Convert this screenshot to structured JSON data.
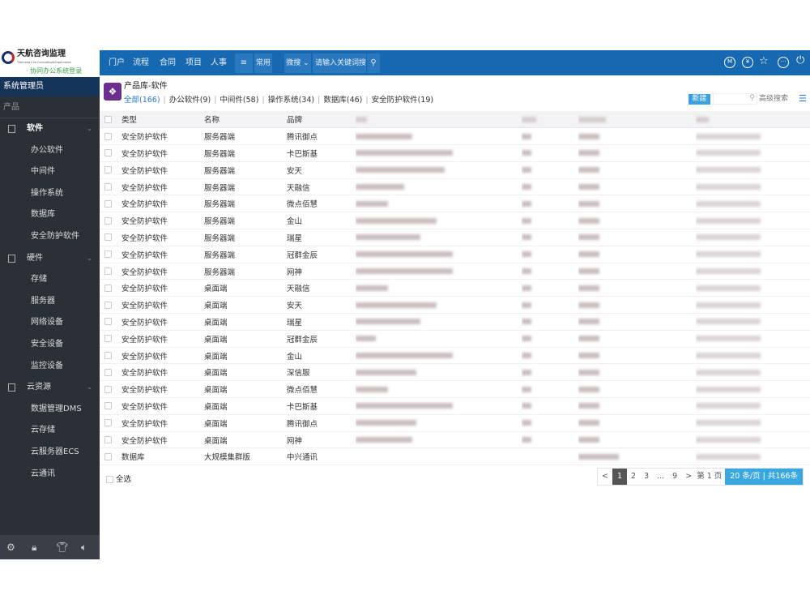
{
  "logo": {
    "name": "天航咨询监理",
    "subtitle": "Tianhang Info Consulting&Supervision",
    "slogan": "· 协同办公系统登录"
  },
  "topbar": {
    "nav": [
      "门户",
      "流程",
      "合同",
      "项目",
      "人事"
    ],
    "menu_icon": "≡",
    "common": "常用",
    "wsearch": "微搜 ⌄",
    "search_placeholder": "请输入关键词搜索",
    "right_icons": [
      "M",
      "¥",
      "star-icon",
      "message-icon",
      "power-icon"
    ]
  },
  "sidebar": {
    "user": "系统管理员",
    "section": "产品",
    "groups": [
      {
        "label": "软件",
        "items": [
          "办公软件",
          "中间件",
          "操作系统",
          "数据库",
          "安全防护软件"
        ]
      },
      {
        "label": "硬件",
        "items": [
          "存储",
          "服务器",
          "网络设备",
          "安全设备",
          "监控设备"
        ]
      },
      {
        "label": "云资源",
        "items": [
          "数据管理DMS",
          "云存储",
          "云服务器ECS",
          "云通讯"
        ]
      }
    ]
  },
  "main": {
    "title": "产品库-软件",
    "filters": [
      "全部(166)",
      "办公软件(9)",
      "中间件(58)",
      "操作系统(34)",
      "数据库(46)",
      "安全防护软件(19)"
    ],
    "new_label": "新建",
    "adv_search": "高级搜索",
    "columns": [
      "类型",
      "名称",
      "品牌"
    ],
    "rows": [
      [
        "安全防护软件",
        "服务器端",
        "腾讯御点"
      ],
      [
        "安全防护软件",
        "服务器端",
        "卡巴斯基"
      ],
      [
        "安全防护软件",
        "服务器端",
        "安天"
      ],
      [
        "安全防护软件",
        "服务器端",
        "天融信"
      ],
      [
        "安全防护软件",
        "服务器端",
        "微点佰慧"
      ],
      [
        "安全防护软件",
        "服务器端",
        "金山"
      ],
      [
        "安全防护软件",
        "服务器端",
        "瑞星"
      ],
      [
        "安全防护软件",
        "服务器端",
        "冠群金辰"
      ],
      [
        "安全防护软件",
        "服务器端",
        "网神"
      ],
      [
        "安全防护软件",
        "桌面端",
        "天融信"
      ],
      [
        "安全防护软件",
        "桌面端",
        "安天"
      ],
      [
        "安全防护软件",
        "桌面端",
        "瑞星"
      ],
      [
        "安全防护软件",
        "桌面端",
        "冠群金辰"
      ],
      [
        "安全防护软件",
        "桌面端",
        "金山"
      ],
      [
        "安全防护软件",
        "桌面端",
        "深信服"
      ],
      [
        "安全防护软件",
        "桌面端",
        "微点佰慧"
      ],
      [
        "安全防护软件",
        "桌面端",
        "卡巴斯基"
      ],
      [
        "安全防护软件",
        "桌面端",
        "腾讯御点"
      ],
      [
        "安全防护软件",
        "桌面端",
        "网神"
      ],
      [
        "数据库",
        "大规模集群版",
        "中兴通讯"
      ]
    ],
    "select_all": "全选",
    "pager": {
      "prev": "<",
      "pages": [
        "1",
        "2",
        "3",
        "...",
        "9"
      ],
      "next": ">",
      "goto_prefix": "第",
      "goto_value": "1",
      "goto_suffix": "页",
      "info": "20 条/页 | 共166条",
      "current": "1"
    }
  },
  "colors": {
    "topbar": "#1668b0",
    "sidebar": "#2b2f36",
    "accent": "#3aa8e0"
  }
}
